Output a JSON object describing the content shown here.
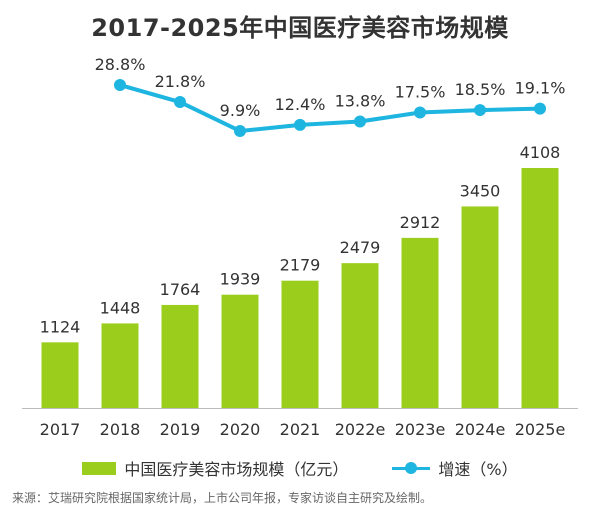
{
  "title": "2017-2025年中国医疗美容市场规模",
  "source": "来源：艾瑞研究院根据国家统计局，上市公司年报，专家访谈自主研究及绘制。",
  "colors": {
    "bar": "#9ACD1C",
    "line": "#1EB5E0",
    "text": "#333333",
    "axis": "#BBBBBB"
  },
  "legend": {
    "bar_label": "中国医疗美容市场规模（亿元）",
    "line_label": "增速（%）"
  },
  "chart_data": {
    "type": "bar",
    "title": "2017-2025年中国医疗美容市场规模",
    "categories": [
      "2017",
      "2018",
      "2019",
      "2020",
      "2021",
      "2022e",
      "2023e",
      "2024e",
      "2025e"
    ],
    "series": [
      {
        "name": "中国医疗美容市场规模（亿元）",
        "type": "bar",
        "values": [
          1124,
          1448,
          1764,
          1939,
          2179,
          2479,
          2912,
          3450,
          4108
        ],
        "labels": [
          "1124",
          "1448",
          "1764",
          "1939",
          "2179",
          "2479",
          "2912",
          "3450",
          "4108"
        ]
      },
      {
        "name": "增速（%）",
        "type": "line",
        "values": [
          null,
          28.8,
          21.8,
          9.9,
          12.4,
          13.8,
          17.5,
          18.5,
          19.1
        ],
        "labels": [
          "",
          "28.8%",
          "21.8%",
          "9.9%",
          "12.4%",
          "13.8%",
          "17.5%",
          "18.5%",
          "19.1%"
        ]
      }
    ],
    "legend_position": "bottom",
    "grid": false
  }
}
